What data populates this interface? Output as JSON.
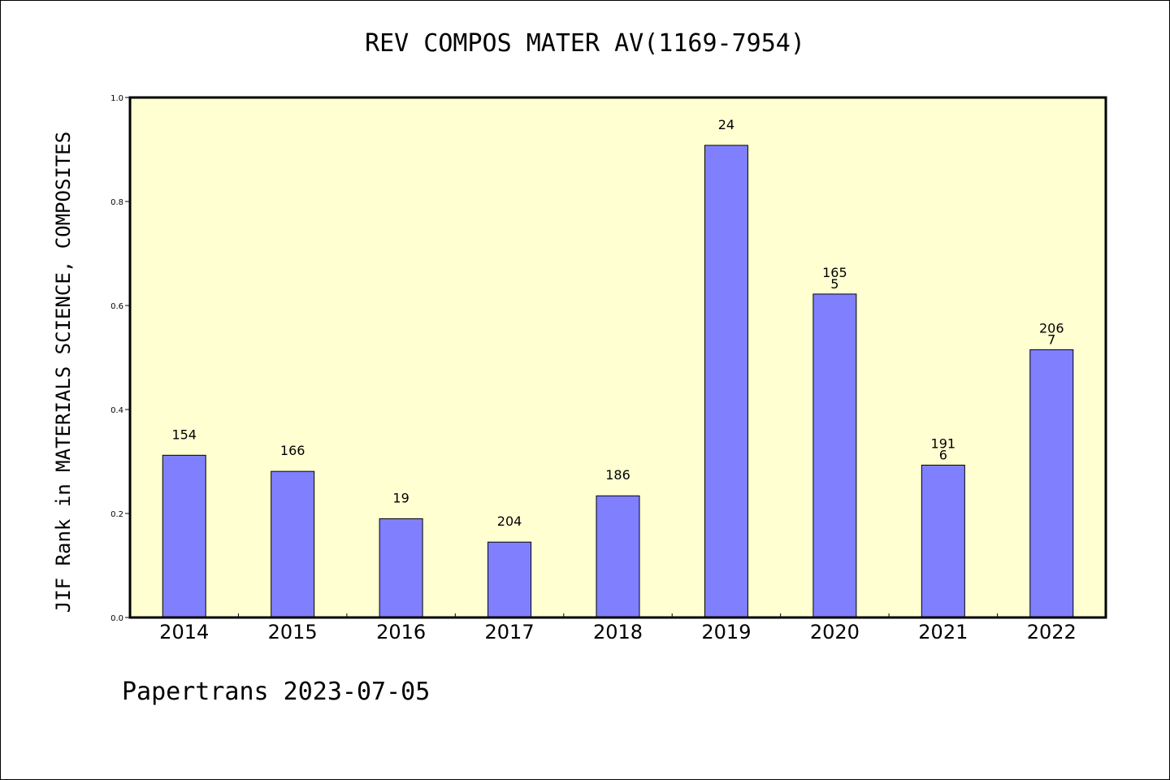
{
  "chart_data": {
    "type": "bar",
    "title": "REV COMPOS MATER AV(1169-7954)",
    "xlabel": "",
    "ylabel": "JIF Rank in MATERIALS SCIENCE, COMPOSITES",
    "categories": [
      "2014",
      "2015",
      "2016",
      "2017",
      "2018",
      "2019",
      "2020",
      "2021",
      "2022"
    ],
    "values": [
      0.312,
      0.281,
      0.19,
      0.145,
      0.234,
      0.908,
      0.622,
      0.293,
      0.515
    ],
    "data_labels": [
      [
        "154"
      ],
      [
        "166"
      ],
      [
        "19"
      ],
      [
        "204"
      ],
      [
        "186"
      ],
      [
        "24"
      ],
      [
        "165",
        "5"
      ],
      [
        "191",
        "6"
      ],
      [
        "206",
        "7"
      ]
    ],
    "ylim": [
      0,
      1.0
    ],
    "yticks": [
      "0.0",
      "0.2",
      "0.4",
      "0.6",
      "0.8",
      "1.0"
    ],
    "grid": false,
    "colors": {
      "bar": "#8080ff",
      "plot_background": "#ffffd2",
      "axis": "#000000"
    }
  },
  "footer": "Papertrans 2023-07-05"
}
